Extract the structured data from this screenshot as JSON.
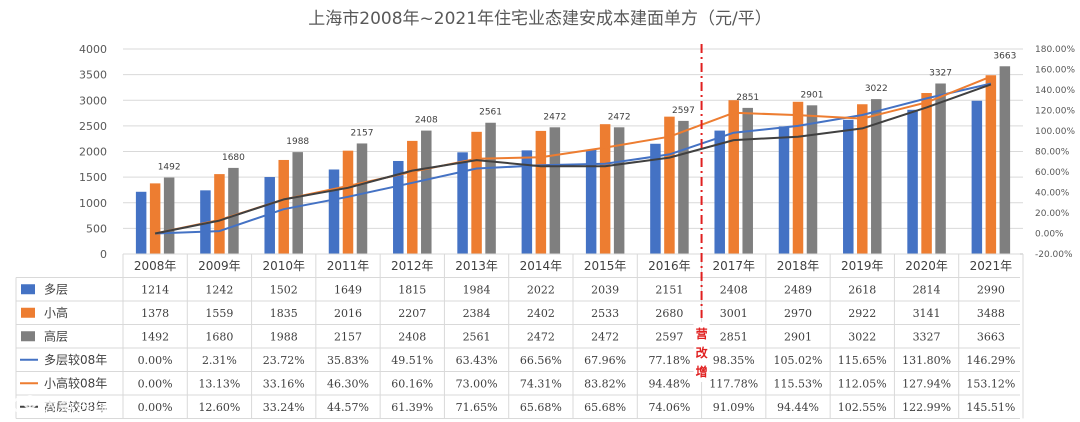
{
  "chart_data": {
    "type": "bar",
    "title": "上海市2008年~2021年住宅业态建安成本建面单方（元/平）",
    "categories": [
      "2008年",
      "2009年",
      "2010年",
      "2011年",
      "2012年",
      "2013年",
      "2014年",
      "2015年",
      "2016年",
      "2017年",
      "2018年",
      "2019年",
      "2020年",
      "2021年"
    ],
    "ylim": [
      0,
      4000
    ],
    "y_ticks": [
      "0",
      "500",
      "1000",
      "1500",
      "2000",
      "2500",
      "3000",
      "3500",
      "4000"
    ],
    "y2lim": [
      -20,
      180
    ],
    "y2_ticks": [
      "-20.00%",
      "0.00%",
      "20.00%",
      "40.00%",
      "60.00%",
      "80.00%",
      "100.00%",
      "120.00%",
      "140.00%",
      "160.00%",
      "180.00%"
    ],
    "series": [
      {
        "name": "多层",
        "kind": "bar",
        "color": "#4472c4",
        "values": [
          1214,
          1242,
          1502,
          1649,
          1815,
          1984,
          2022,
          2039,
          2151,
          2408,
          2489,
          2618,
          2814,
          2990
        ],
        "labels": [
          "1214",
          "1242",
          "1502",
          "1649",
          "1815",
          "1984",
          "2022",
          "2039",
          "2151",
          "2408",
          "2489",
          "2618",
          "2814",
          "2990"
        ]
      },
      {
        "name": "小高",
        "kind": "bar",
        "color": "#ed7d31",
        "values": [
          1378,
          1559,
          1835,
          2016,
          2207,
          2384,
          2402,
          2533,
          2680,
          3001,
          2970,
          2922,
          3141,
          3488
        ],
        "labels": [
          "1378",
          "1559",
          "1835",
          "2016",
          "2207",
          "2384",
          "2402",
          "2533",
          "2680",
          "3001",
          "2970",
          "2922",
          "3141",
          "3488"
        ]
      },
      {
        "name": "高层",
        "kind": "bar",
        "color": "#7f7f7f",
        "values": [
          1492,
          1680,
          1988,
          2157,
          2408,
          2561,
          2472,
          2472,
          2597,
          2851,
          2901,
          3022,
          3327,
          3663
        ],
        "labels": [
          "1492",
          "1680",
          "1988",
          "2157",
          "2408",
          "2561",
          "2472",
          "2472",
          "2597",
          "2851",
          "2901",
          "3022",
          "3327",
          "3663"
        ]
      },
      {
        "name": "多层较08年",
        "kind": "line",
        "color": "#4472c4",
        "values": [
          0.0,
          2.31,
          23.72,
          35.83,
          49.51,
          63.43,
          66.56,
          67.96,
          77.18,
          98.35,
          105.02,
          115.65,
          131.8,
          146.29
        ],
        "labels": [
          "0.00%",
          "2.31%",
          "23.72%",
          "35.83%",
          "49.51%",
          "63.43%",
          "66.56%",
          "67.96%",
          "77.18%",
          "98.35%",
          "105.02%",
          "115.65%",
          "131.80%",
          "146.29%"
        ]
      },
      {
        "name": "小高较08年",
        "kind": "line",
        "color": "#ed7d31",
        "values": [
          0.0,
          13.13,
          33.16,
          46.3,
          60.16,
          73.0,
          74.31,
          83.82,
          94.48,
          117.78,
          115.53,
          112.05,
          127.94,
          153.12
        ],
        "labels": [
          "0.00%",
          "13.13%",
          "33.16%",
          "46.30%",
          "60.16%",
          "73.00%",
          "74.31%",
          "83.82%",
          "94.48%",
          "117.78%",
          "115.53%",
          "112.05%",
          "127.94%",
          "153.12%"
        ]
      },
      {
        "name": "高层较08年",
        "kind": "line",
        "color": "#404040",
        "values": [
          0.0,
          12.6,
          33.24,
          44.57,
          61.39,
          71.65,
          65.68,
          65.68,
          74.06,
          91.09,
          94.44,
          102.55,
          122.99,
          145.51
        ],
        "labels": [
          "0.00%",
          "12.60%",
          "33.24%",
          "44.57%",
          "61.39%",
          "71.65%",
          "65.68%",
          "65.68%",
          "74.06%",
          "91.09%",
          "94.44%",
          "102.55%",
          "122.99%",
          "145.51%"
        ]
      }
    ],
    "bar_data_label_series": "高层",
    "annotation": {
      "text": "营改增",
      "after_category": "2016年",
      "color": "#e02020"
    },
    "watermark": "大数跨境"
  }
}
